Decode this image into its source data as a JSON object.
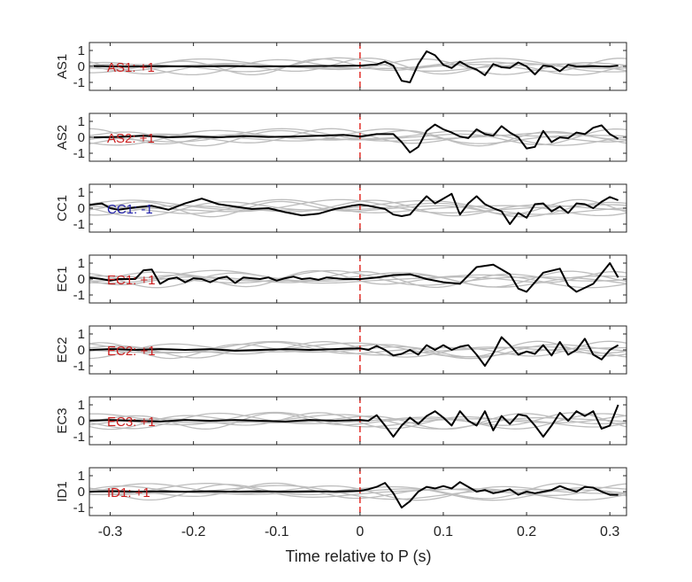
{
  "chart_data": {
    "type": "line",
    "xlabel": "Time relative to P (s)",
    "xlim": [
      -0.325,
      0.32
    ],
    "x_ticks": [
      -0.3,
      -0.2,
      -0.1,
      0,
      0.1,
      0.2,
      0.3
    ],
    "x_tick_labels": [
      "-0.3",
      "-0.2",
      "-0.1",
      "0",
      "0.1",
      "0.2",
      "0.3"
    ],
    "ylim": [
      -1.5,
      1.5
    ],
    "y_ticks": [
      1,
      0,
      -1
    ],
    "y_tick_labels": [
      "1",
      "0",
      "-1"
    ],
    "p_marker_x": 0,
    "colors": {
      "main_trace": "#000000",
      "background_traces": "#bdbdbd",
      "p_marker": "#e0201b",
      "positive_label": "#cc1f1f",
      "negative_label": "#1f1faa"
    },
    "panels": [
      {
        "ylabel": "AS1",
        "annotation": "AS1: +1",
        "annotation_color": "#cc1f1f",
        "series": {
          "x": [
            -0.32,
            -0.28,
            -0.24,
            -0.2,
            -0.16,
            -0.12,
            -0.08,
            -0.04,
            0.0,
            0.02,
            0.03,
            0.04,
            0.05,
            0.06,
            0.07,
            0.08,
            0.09,
            0.1,
            0.11,
            0.12,
            0.13,
            0.14,
            0.15,
            0.16,
            0.17,
            0.18,
            0.19,
            0.2,
            0.21,
            0.22,
            0.23,
            0.24,
            0.25,
            0.26,
            0.27,
            0.28,
            0.29,
            0.3,
            0.31
          ],
          "y": [
            0.02,
            0.0,
            0.01,
            0.0,
            0.02,
            0.0,
            0.01,
            0.03,
            0.05,
            0.12,
            0.3,
            0.05,
            -0.9,
            -1.0,
            0.15,
            0.95,
            0.7,
            0.1,
            -0.1,
            0.3,
            0.0,
            -0.2,
            -0.55,
            0.15,
            -0.05,
            -0.1,
            0.25,
            0.0,
            -0.5,
            0.05,
            0.0,
            -0.3,
            0.1,
            0.0,
            0.0,
            0.02,
            0.0,
            0.0,
            0.05
          ]
        }
      },
      {
        "ylabel": "AS2",
        "annotation": "AS2: +1",
        "annotation_color": "#cc1f1f",
        "series": {
          "x": [
            -0.32,
            -0.29,
            -0.26,
            -0.23,
            -0.2,
            -0.17,
            -0.14,
            -0.11,
            -0.08,
            -0.05,
            -0.02,
            0.0,
            0.02,
            0.04,
            0.05,
            0.06,
            0.07,
            0.08,
            0.09,
            0.1,
            0.11,
            0.12,
            0.13,
            0.14,
            0.15,
            0.16,
            0.17,
            0.18,
            0.19,
            0.2,
            0.21,
            0.22,
            0.23,
            0.24,
            0.25,
            0.26,
            0.27,
            0.28,
            0.29,
            0.3,
            0.31
          ],
          "y": [
            0.0,
            0.03,
            0.1,
            0.0,
            0.05,
            0.0,
            0.08,
            0.02,
            0.05,
            0.1,
            0.15,
            0.05,
            0.2,
            0.2,
            -0.3,
            -0.95,
            -0.6,
            0.4,
            0.8,
            0.5,
            0.3,
            0.05,
            -0.05,
            0.5,
            0.2,
            0.1,
            0.7,
            0.3,
            0.0,
            -0.7,
            -0.6,
            0.4,
            -0.3,
            0.0,
            -0.05,
            0.3,
            0.2,
            0.6,
            0.75,
            0.2,
            -0.1
          ]
        }
      },
      {
        "ylabel": "CC1",
        "annotation": "CC1: -1",
        "annotation_color": "#1f1faa",
        "series": {
          "x": [
            -0.325,
            -0.31,
            -0.3,
            -0.29,
            -0.27,
            -0.25,
            -0.23,
            -0.21,
            -0.19,
            -0.17,
            -0.15,
            -0.13,
            -0.11,
            -0.09,
            -0.07,
            -0.05,
            -0.03,
            -0.01,
            0.0,
            0.01,
            0.03,
            0.04,
            0.05,
            0.06,
            0.07,
            0.08,
            0.09,
            0.1,
            0.11,
            0.12,
            0.13,
            0.14,
            0.15,
            0.16,
            0.17,
            0.18,
            0.19,
            0.2,
            0.21,
            0.22,
            0.23,
            0.24,
            0.25,
            0.26,
            0.27,
            0.28,
            0.29,
            0.3,
            0.31
          ],
          "y": [
            0.2,
            0.3,
            0.0,
            -0.1,
            0.05,
            0.15,
            -0.1,
            0.3,
            0.6,
            0.25,
            0.1,
            -0.05,
            0.0,
            -0.25,
            -0.45,
            -0.35,
            -0.05,
            0.15,
            0.22,
            0.15,
            -0.05,
            -0.4,
            -0.5,
            -0.4,
            0.2,
            0.75,
            0.3,
            0.6,
            0.9,
            -0.4,
            0.3,
            0.75,
            0.25,
            0.0,
            -0.2,
            -1.0,
            -0.3,
            -0.6,
            0.25,
            0.3,
            -0.2,
            0.1,
            -0.3,
            0.3,
            0.25,
            0.0,
            0.4,
            0.7,
            0.5
          ]
        }
      },
      {
        "ylabel": "EC1",
        "annotation": "EC1: +1",
        "annotation_color": "#cc1f1f",
        "series": {
          "x": [
            -0.325,
            -0.31,
            -0.3,
            -0.29,
            -0.27,
            -0.26,
            -0.25,
            -0.24,
            -0.23,
            -0.22,
            -0.21,
            -0.2,
            -0.19,
            -0.18,
            -0.17,
            -0.16,
            -0.15,
            -0.14,
            -0.13,
            -0.12,
            -0.11,
            -0.1,
            -0.09,
            -0.08,
            -0.07,
            -0.06,
            -0.05,
            -0.04,
            -0.03,
            -0.02,
            -0.01,
            0.0,
            0.02,
            0.04,
            0.06,
            0.08,
            0.1,
            0.12,
            0.14,
            0.16,
            0.18,
            0.19,
            0.2,
            0.22,
            0.24,
            0.25,
            0.26,
            0.28,
            0.3,
            0.31
          ],
          "y": [
            0.1,
            0.0,
            -0.1,
            0.0,
            0.0,
            0.55,
            0.6,
            -0.3,
            0.0,
            0.1,
            -0.2,
            0.05,
            0.0,
            -0.2,
            0.05,
            0.15,
            -0.25,
            0.1,
            0.05,
            0.0,
            0.1,
            -0.1,
            0.05,
            0.15,
            0.0,
            0.05,
            -0.05,
            0.1,
            0.05,
            0.0,
            0.0,
            0.0,
            0.1,
            0.25,
            0.3,
            0.0,
            -0.2,
            -0.3,
            0.75,
            0.9,
            0.3,
            -0.6,
            -0.8,
            0.4,
            0.65,
            -0.4,
            -0.8,
            -0.3,
            1.0,
            0.1
          ]
        }
      },
      {
        "ylabel": "EC2",
        "annotation": "EC2: +1",
        "annotation_color": "#cc1f1f",
        "series": {
          "x": [
            -0.325,
            -0.3,
            -0.27,
            -0.24,
            -0.21,
            -0.18,
            -0.15,
            -0.12,
            -0.09,
            -0.06,
            -0.03,
            0.0,
            0.01,
            0.02,
            0.03,
            0.04,
            0.05,
            0.06,
            0.07,
            0.08,
            0.09,
            0.1,
            0.11,
            0.12,
            0.13,
            0.14,
            0.15,
            0.16,
            0.17,
            0.18,
            0.19,
            0.2,
            0.21,
            0.22,
            0.23,
            0.24,
            0.25,
            0.26,
            0.27,
            0.28,
            0.29,
            0.3,
            0.31
          ],
          "y": [
            0.0,
            0.05,
            0.0,
            0.05,
            0.0,
            0.05,
            -0.05,
            0.0,
            0.05,
            0.0,
            0.05,
            0.1,
            0.0,
            0.25,
            0.0,
            -0.35,
            -0.25,
            0.0,
            -0.3,
            0.3,
            0.0,
            0.3,
            0.0,
            0.2,
            0.3,
            -0.3,
            -1.0,
            -0.2,
            0.8,
            0.3,
            -0.3,
            -0.1,
            -0.25,
            0.3,
            -0.35,
            0.5,
            -0.3,
            0.0,
            0.7,
            -0.3,
            -0.6,
            0.0,
            0.3
          ]
        }
      },
      {
        "ylabel": "EC3",
        "annotation": "EC3: +1",
        "annotation_color": "#cc1f1f",
        "series": {
          "x": [
            -0.325,
            -0.3,
            -0.27,
            -0.24,
            -0.21,
            -0.18,
            -0.15,
            -0.12,
            -0.09,
            -0.06,
            -0.03,
            0.0,
            0.01,
            0.02,
            0.03,
            0.04,
            0.05,
            0.06,
            0.07,
            0.08,
            0.09,
            0.1,
            0.11,
            0.12,
            0.13,
            0.14,
            0.15,
            0.16,
            0.17,
            0.18,
            0.19,
            0.2,
            0.21,
            0.22,
            0.23,
            0.24,
            0.25,
            0.26,
            0.27,
            0.28,
            0.29,
            0.3,
            0.31
          ],
          "y": [
            0.0,
            0.05,
            0.0,
            -0.05,
            0.05,
            0.0,
            0.05,
            0.0,
            -0.05,
            0.05,
            0.0,
            0.05,
            0.0,
            0.35,
            -0.3,
            -1.0,
            -0.3,
            0.2,
            -0.2,
            0.3,
            0.6,
            0.2,
            -0.3,
            0.6,
            0.0,
            -0.3,
            0.6,
            -0.6,
            0.3,
            -0.2,
            0.4,
            0.3,
            -0.3,
            -1.0,
            -0.3,
            0.5,
            0.0,
            0.6,
            0.3,
            0.6,
            -0.5,
            -0.3,
            1.0
          ]
        }
      },
      {
        "ylabel": "ID1",
        "annotation": "ID1: +1",
        "annotation_color": "#cc1f1f",
        "series": {
          "x": [
            -0.325,
            -0.3,
            -0.27,
            -0.24,
            -0.21,
            -0.18,
            -0.15,
            -0.12,
            -0.09,
            -0.06,
            -0.03,
            0.0,
            0.01,
            0.02,
            0.03,
            0.04,
            0.05,
            0.06,
            0.07,
            0.08,
            0.09,
            0.1,
            0.11,
            0.12,
            0.13,
            0.14,
            0.15,
            0.16,
            0.17,
            0.18,
            0.19,
            0.2,
            0.21,
            0.22,
            0.23,
            0.24,
            0.25,
            0.26,
            0.27,
            0.28,
            0.29,
            0.3,
            0.31
          ],
          "y": [
            0.0,
            0.02,
            0.0,
            0.02,
            0.0,
            0.02,
            0.0,
            0.02,
            0.0,
            0.02,
            0.0,
            0.05,
            0.15,
            0.3,
            0.55,
            -0.1,
            -1.0,
            -0.6,
            0.0,
            0.3,
            0.2,
            0.35,
            0.2,
            0.6,
            0.3,
            0.0,
            0.1,
            -0.1,
            0.0,
            0.15,
            -0.2,
            0.0,
            -0.1,
            0.0,
            0.1,
            0.35,
            0.15,
            0.0,
            0.3,
            0.25,
            0.0,
            -0.2,
            -0.2
          ]
        }
      }
    ]
  }
}
